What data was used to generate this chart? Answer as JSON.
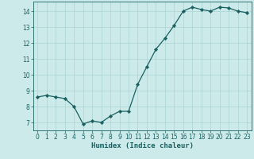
{
  "x": [
    0,
    1,
    2,
    3,
    4,
    5,
    6,
    7,
    8,
    9,
    10,
    11,
    12,
    13,
    14,
    15,
    16,
    17,
    18,
    19,
    20,
    21,
    22,
    23
  ],
  "y": [
    8.6,
    8.7,
    8.6,
    8.5,
    8.0,
    6.9,
    7.1,
    7.0,
    7.4,
    7.7,
    7.7,
    9.4,
    10.5,
    11.6,
    12.3,
    13.1,
    14.0,
    14.25,
    14.1,
    14.0,
    14.25,
    14.2,
    14.0,
    13.9
  ],
  "xlabel": "Humidex (Indice chaleur)",
  "bg_color": "#cceaea",
  "line_color": "#1a6060",
  "grid_color": "#aad4d4",
  "ylim": [
    6.5,
    14.6
  ],
  "xlim": [
    -0.5,
    23.5
  ],
  "yticks": [
    7,
    8,
    9,
    10,
    11,
    12,
    13,
    14
  ],
  "xticks": [
    0,
    1,
    2,
    3,
    4,
    5,
    6,
    7,
    8,
    9,
    10,
    11,
    12,
    13,
    14,
    15,
    16,
    17,
    18,
    19,
    20,
    21,
    22,
    23
  ],
  "xtick_labels": [
    "0",
    "1",
    "2",
    "3",
    "4",
    "5",
    "6",
    "7",
    "8",
    "9",
    "10",
    "11",
    "12",
    "13",
    "14",
    "15",
    "16",
    "17",
    "18",
    "19",
    "20",
    "21",
    "22",
    "23"
  ],
  "tick_fontsize": 5.5,
  "xlabel_fontsize": 6.5
}
